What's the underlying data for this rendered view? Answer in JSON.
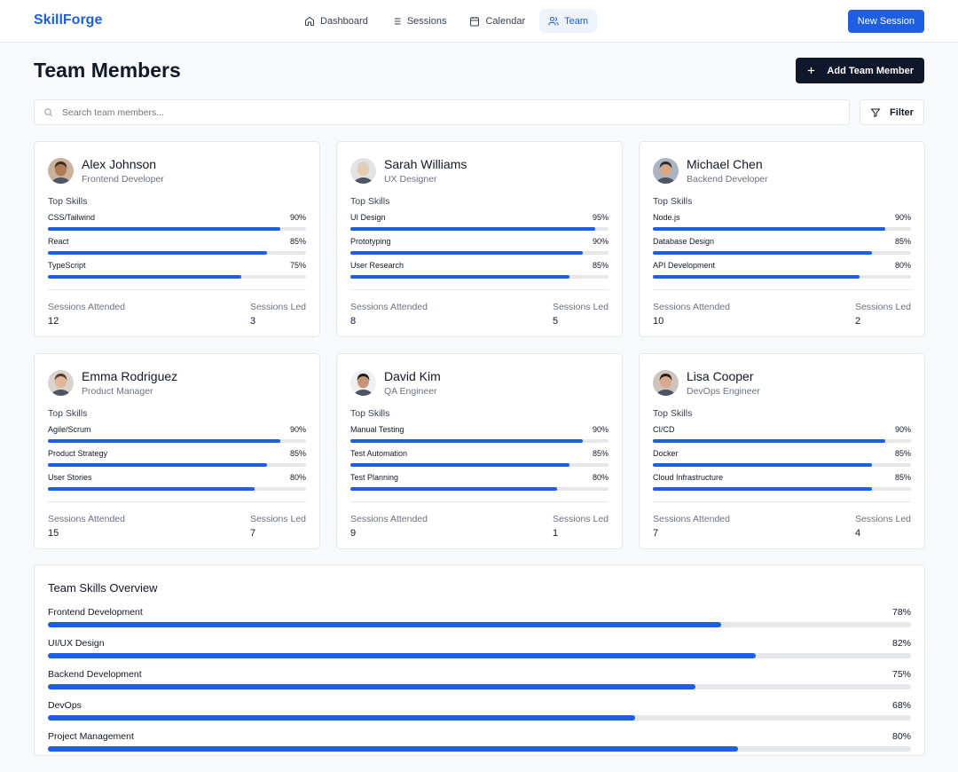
{
  "app": {
    "logo": "SkillForge",
    "nav": [
      {
        "label": "Dashboard",
        "icon": "home-icon",
        "active": false
      },
      {
        "label": "Sessions",
        "icon": "list-icon",
        "active": false
      },
      {
        "label": "Calendar",
        "icon": "calendar-icon",
        "active": false
      },
      {
        "label": "Team",
        "icon": "users-icon",
        "active": true
      }
    ],
    "new_session_label": "New Session",
    "accent_color": "#1d5fe0"
  },
  "page": {
    "title": "Team Members",
    "add_button_label": "Add Team Member",
    "search_placeholder": "Search team members...",
    "filter_label": "Filter"
  },
  "members": [
    {
      "name": "Alex Johnson",
      "role": "Frontend Developer",
      "top_skills_label": "Top Skills",
      "skills": [
        {
          "name": "CSS/Tailwind",
          "percent": "90%",
          "value": 90
        },
        {
          "name": "React",
          "percent": "85%",
          "value": 85
        },
        {
          "name": "TypeScript",
          "percent": "75%",
          "value": 75
        }
      ],
      "attended_label": "Sessions Attended",
      "attended": "12",
      "led_label": "Sessions Led",
      "led": "3"
    },
    {
      "name": "Sarah Williams",
      "role": "UX Designer",
      "top_skills_label": "Top Skills",
      "skills": [
        {
          "name": "UI Design",
          "percent": "95%",
          "value": 95
        },
        {
          "name": "Prototyping",
          "percent": "90%",
          "value": 90
        },
        {
          "name": "User Research",
          "percent": "85%",
          "value": 85
        }
      ],
      "attended_label": "Sessions Attended",
      "attended": "8",
      "led_label": "Sessions Led",
      "led": "5"
    },
    {
      "name": "Michael Chen",
      "role": "Backend Developer",
      "top_skills_label": "Top Skills",
      "skills": [
        {
          "name": "Node.js",
          "percent": "90%",
          "value": 90
        },
        {
          "name": "Database Design",
          "percent": "85%",
          "value": 85
        },
        {
          "name": "API Development",
          "percent": "80%",
          "value": 80
        }
      ],
      "attended_label": "Sessions Attended",
      "attended": "10",
      "led_label": "Sessions Led",
      "led": "2"
    },
    {
      "name": "Emma Rodriguez",
      "role": "Product Manager",
      "top_skills_label": "Top Skills",
      "skills": [
        {
          "name": "Agile/Scrum",
          "percent": "90%",
          "value": 90
        },
        {
          "name": "Product Strategy",
          "percent": "85%",
          "value": 85
        },
        {
          "name": "User Stories",
          "percent": "80%",
          "value": 80
        }
      ],
      "attended_label": "Sessions Attended",
      "attended": "15",
      "led_label": "Sessions Led",
      "led": "7"
    },
    {
      "name": "David Kim",
      "role": "QA Engineer",
      "top_skills_label": "Top Skills",
      "skills": [
        {
          "name": "Manual Testing",
          "percent": "90%",
          "value": 90
        },
        {
          "name": "Test Automation",
          "percent": "85%",
          "value": 85
        },
        {
          "name": "Test Planning",
          "percent": "80%",
          "value": 80
        }
      ],
      "attended_label": "Sessions Attended",
      "attended": "9",
      "led_label": "Sessions Led",
      "led": "1"
    },
    {
      "name": "Lisa Cooper",
      "role": "DevOps Engineer",
      "top_skills_label": "Top Skills",
      "skills": [
        {
          "name": "CI/CD",
          "percent": "90%",
          "value": 90
        },
        {
          "name": "Docker",
          "percent": "85%",
          "value": 85
        },
        {
          "name": "Cloud Infrastructure",
          "percent": "85%",
          "value": 85
        }
      ],
      "attended_label": "Sessions Attended",
      "attended": "7",
      "led_label": "Sessions Led",
      "led": "4"
    }
  ],
  "overview": {
    "title": "Team Skills Overview",
    "items": [
      {
        "name": "Frontend Development",
        "percent": "78%",
        "value": 78
      },
      {
        "name": "UI/UX Design",
        "percent": "82%",
        "value": 82
      },
      {
        "name": "Backend Development",
        "percent": "75%",
        "value": 75
      },
      {
        "name": "DevOps",
        "percent": "68%",
        "value": 68
      },
      {
        "name": "Project Management",
        "percent": "80%",
        "value": 80
      }
    ]
  }
}
